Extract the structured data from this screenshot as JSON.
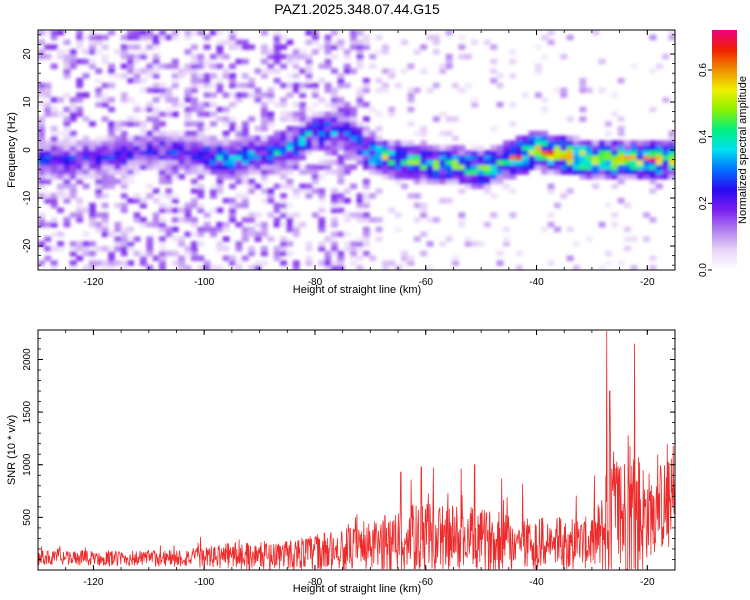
{
  "title": "PAZ1.2025.348.07.44.G15",
  "colors": {
    "snr_line": "#ee2a2a",
    "colormap": [
      "#ffffff",
      "#e8d4f8",
      "#b07ef0",
      "#7a1ef0",
      "#2a0af0",
      "#0070ff",
      "#00e0f0",
      "#00f080",
      "#8af000",
      "#f0f000",
      "#f09000",
      "#f02000",
      "#f00080"
    ]
  },
  "chart_data": [
    {
      "type": "heatmap",
      "id": "spectrogram",
      "title": "",
      "xlabel": "Height of straight line (km)",
      "ylabel": "Frequency (Hz)",
      "xlim": [
        -130,
        -15
      ],
      "ylim": [
        -25,
        25
      ],
      "xticks": [
        -120,
        -100,
        -80,
        -60,
        -40,
        -20
      ],
      "yticks": [
        -20,
        -10,
        0,
        10,
        20
      ],
      "colorbar": {
        "label": "Normalized spectral amplitude",
        "range": [
          0,
          0.72
        ],
        "ticks": [
          "0.0",
          "0.2",
          "0.4",
          "0.6"
        ]
      },
      "ridge": {
        "description_points_km_hz": [
          [
            -125,
            -2
          ],
          [
            -115,
            -1
          ],
          [
            -108,
            0
          ],
          [
            -100,
            -1
          ],
          [
            -95,
            -2
          ],
          [
            -85,
            0
          ],
          [
            -80,
            4
          ],
          [
            -75,
            4
          ],
          [
            -70,
            -1
          ],
          [
            -65,
            -2
          ],
          [
            -60,
            -3
          ],
          [
            -55,
            -3
          ],
          [
            -50,
            -4
          ],
          [
            -45,
            -2
          ],
          [
            -40,
            0
          ],
          [
            -35,
            -1
          ],
          [
            -30,
            -2
          ],
          [
            -25,
            -2
          ],
          [
            -20,
            -2
          ],
          [
            -15,
            -2
          ]
        ],
        "peak": {
          "x": -19,
          "y": -2,
          "value": 0.72
        }
      }
    },
    {
      "type": "line",
      "id": "snr",
      "title": "",
      "xlabel": "Height of straight line (km)",
      "ylabel": "SNR (10 * v/v)",
      "xlim": [
        -130,
        -15
      ],
      "ylim": [
        0,
        2280
      ],
      "xticks": [
        -120,
        -100,
        -80,
        -60,
        -40,
        -20
      ],
      "yticks": [
        500,
        1000,
        1500,
        2000
      ],
      "series": [
        {
          "name": "SNR",
          "envelope_x": [
            -130,
            -120,
            -110,
            -100,
            -95,
            -90,
            -85,
            -80,
            -75,
            -70,
            -66,
            -63,
            -60,
            -55,
            -50,
            -45,
            -40,
            -35,
            -30,
            -28,
            -27,
            -26,
            -24,
            -22,
            -20,
            -18,
            -15
          ],
          "envelope_base": [
            120,
            110,
            110,
            120,
            140,
            130,
            150,
            160,
            190,
            220,
            260,
            290,
            300,
            300,
            280,
            270,
            250,
            250,
            260,
            340,
            520,
            520,
            500,
            480,
            520,
            600,
            620
          ],
          "envelope_amp": [
            120,
            120,
            130,
            160,
            220,
            220,
            240,
            300,
            340,
            380,
            520,
            560,
            560,
            560,
            500,
            480,
            430,
            420,
            420,
            700,
            1500,
            1100,
            1100,
            1300,
            700,
            700,
            800
          ],
          "spikes": [
            [
              -27.3,
              2270
            ],
            [
              -26.8,
              1700
            ],
            [
              -22.3,
              2150
            ],
            [
              -64.5,
              930
            ],
            [
              -60.8,
              980
            ],
            [
              -51.2,
              1000
            ],
            [
              -46.3,
              870
            ],
            [
              -42.5,
              820
            ]
          ]
        }
      ]
    }
  ]
}
